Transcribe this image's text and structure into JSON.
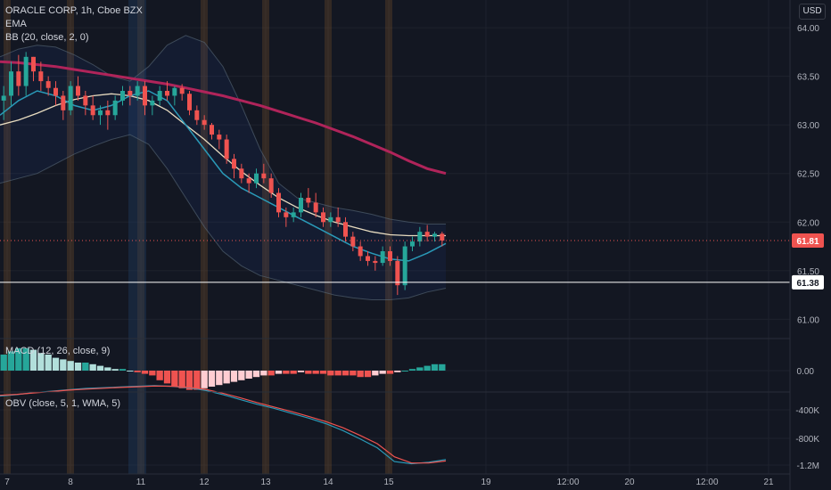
{
  "header": {
    "title": "ORACLE CORP, 1h, Cboe BZX",
    "ema_label": "EMA",
    "bb_label": "BB (20, close, 2, 0)",
    "macd_label": "MACD (12, 26, close, 9)",
    "obv_label": "OBV (close, 5, 1, WMA, 5)",
    "currency": "USD"
  },
  "colors": {
    "background": "#131722",
    "up": "#26a69a",
    "down": "#ef5350",
    "ema_slow": "#b0245a",
    "ma_basis": "#e8dcc0",
    "bb_band": "#2962ff",
    "ema_fast": "#2a9ab8",
    "session_highlight": "#8a5a2a",
    "grid": "#1e222d"
  },
  "chart_data": [
    {
      "type": "candlestick",
      "title": "ORACLE CORP, 1h, Cboe BZX",
      "y_ticks": [
        "64.00",
        "63.50",
        "63.00",
        "62.50",
        "62.00",
        "61.50",
        "61.00"
      ],
      "ylim": [
        60.82,
        64.12
      ],
      "x_ticks": [
        "7",
        "8",
        "11",
        "12",
        "13",
        "14",
        "15",
        "19",
        "12:00",
        "20",
        "12:00",
        "21"
      ],
      "last_price": "61.81",
      "horizontal_line": "61.38",
      "candles": [
        [
          63.25,
          63.4,
          63.05,
          63.3
        ],
        [
          63.3,
          63.65,
          63.2,
          63.55
        ],
        [
          63.55,
          63.72,
          63.3,
          63.4
        ],
        [
          63.4,
          63.75,
          63.3,
          63.7
        ],
        [
          63.7,
          63.7,
          63.45,
          63.55
        ],
        [
          63.55,
          63.65,
          63.35,
          63.45
        ],
        [
          63.45,
          63.5,
          63.3,
          63.38
        ],
        [
          63.38,
          63.45,
          63.2,
          63.3
        ],
        [
          63.3,
          63.35,
          63.05,
          63.15
        ],
        [
          63.15,
          63.45,
          63.1,
          63.4
        ],
        [
          63.4,
          63.5,
          63.25,
          63.3
        ],
        [
          63.3,
          63.35,
          63.1,
          63.2
        ],
        [
          63.2,
          63.3,
          63.05,
          63.1
        ],
        [
          63.1,
          63.2,
          63.0,
          63.15
        ],
        [
          63.15,
          63.25,
          62.95,
          63.1
        ],
        [
          63.1,
          63.3,
          63.05,
          63.25
        ],
        [
          63.25,
          63.4,
          63.2,
          63.35
        ],
        [
          63.35,
          63.4,
          63.2,
          63.3
        ],
        [
          63.3,
          63.45,
          63.25,
          63.4
        ],
        [
          63.4,
          63.45,
          63.1,
          63.2
        ],
        [
          63.2,
          63.3,
          63.1,
          63.25
        ],
        [
          63.25,
          63.4,
          63.2,
          63.35
        ],
        [
          63.35,
          63.45,
          63.25,
          63.3
        ],
        [
          63.3,
          63.4,
          63.2,
          63.38
        ],
        [
          63.38,
          63.42,
          63.25,
          63.32
        ],
        [
          63.32,
          63.35,
          63.1,
          63.15
        ],
        [
          63.15,
          63.2,
          63.0,
          63.05
        ],
        [
          63.05,
          63.1,
          62.95,
          63.0
        ],
        [
          63.0,
          63.02,
          62.85,
          62.9
        ],
        [
          62.9,
          62.95,
          62.75,
          62.85
        ],
        [
          62.85,
          62.9,
          62.6,
          62.65
        ],
        [
          62.65,
          62.7,
          62.45,
          62.55
        ],
        [
          62.55,
          62.6,
          62.4,
          62.45
        ],
        [
          62.45,
          62.5,
          62.3,
          62.4
        ],
        [
          62.4,
          62.55,
          62.35,
          62.5
        ],
        [
          62.5,
          62.6,
          62.4,
          62.45
        ],
        [
          62.45,
          62.5,
          62.25,
          62.3
        ],
        [
          62.3,
          62.35,
          62.05,
          62.1
        ],
        [
          62.1,
          62.15,
          61.95,
          62.05
        ],
        [
          62.05,
          62.15,
          62.0,
          62.1
        ],
        [
          62.1,
          62.3,
          62.05,
          62.25
        ],
        [
          62.25,
          62.35,
          62.15,
          62.2
        ],
        [
          62.2,
          62.3,
          62.05,
          62.1
        ],
        [
          62.1,
          62.15,
          61.95,
          62.0
        ],
        [
          62.0,
          62.1,
          61.95,
          62.05
        ],
        [
          62.05,
          62.15,
          61.95,
          62.0
        ],
        [
          62.0,
          62.05,
          61.8,
          61.85
        ],
        [
          61.85,
          61.9,
          61.7,
          61.75
        ],
        [
          61.75,
          61.8,
          61.6,
          61.65
        ],
        [
          61.65,
          61.7,
          61.55,
          61.6
        ],
        [
          61.6,
          61.65,
          61.5,
          61.58
        ],
        [
          61.58,
          61.75,
          61.55,
          61.7
        ],
        [
          61.7,
          61.75,
          61.55,
          61.6
        ],
        [
          61.6,
          61.65,
          61.25,
          61.35
        ],
        [
          61.35,
          61.8,
          61.3,
          61.75
        ],
        [
          61.75,
          61.85,
          61.7,
          61.8
        ],
        [
          61.8,
          61.95,
          61.75,
          61.9
        ],
        [
          61.9,
          61.97,
          61.8,
          61.85
        ],
        [
          61.85,
          61.9,
          61.8,
          61.88
        ],
        [
          61.88,
          61.9,
          61.75,
          61.81
        ]
      ],
      "ema_slow": [
        63.65,
        63.64,
        63.62,
        63.6,
        63.57,
        63.54,
        63.51,
        63.48,
        63.45,
        63.42,
        63.38,
        63.34,
        63.3,
        63.25,
        63.2,
        63.14,
        63.08,
        63.02,
        62.95,
        62.88,
        62.8,
        62.72,
        62.63,
        62.55,
        62.5
      ],
      "ma_basis": [
        63.0,
        63.05,
        63.12,
        63.2,
        63.26,
        63.3,
        63.32,
        63.3,
        63.25,
        63.15,
        63.0,
        62.85,
        62.68,
        62.52,
        62.38,
        62.25,
        62.15,
        62.07,
        62.0,
        61.95,
        61.9,
        61.87,
        61.86,
        61.86,
        61.86
      ],
      "ema_fast": [
        63.1,
        63.25,
        63.35,
        63.3,
        63.2,
        63.15,
        63.2,
        63.3,
        63.35,
        63.25,
        63.0,
        62.75,
        62.5,
        62.35,
        62.25,
        62.15,
        62.05,
        61.95,
        61.85,
        61.75,
        61.68,
        61.62,
        61.6,
        61.68,
        61.78
      ],
      "bb_upper": [
        63.7,
        63.78,
        63.82,
        63.8,
        63.72,
        63.62,
        63.5,
        63.45,
        63.6,
        63.82,
        63.92,
        63.85,
        63.6,
        63.2,
        62.75,
        62.4,
        62.25,
        62.2,
        62.15,
        62.12,
        62.08,
        62.03,
        62.0,
        61.98,
        61.98
      ],
      "bb_lower": [
        62.4,
        62.45,
        62.5,
        62.6,
        62.7,
        62.78,
        62.85,
        62.9,
        62.8,
        62.55,
        62.25,
        61.95,
        61.7,
        61.55,
        61.45,
        61.4,
        61.35,
        61.3,
        61.25,
        61.22,
        61.2,
        61.2,
        61.22,
        61.28,
        61.32
      ],
      "macd_hist": [
        0.1,
        0.12,
        0.14,
        0.14,
        0.13,
        0.11,
        0.1,
        0.08,
        0.07,
        0.06,
        0.05,
        0.05,
        0.04,
        0.03,
        0.02,
        0.01,
        0.01,
        0.0,
        -0.01,
        -0.02,
        -0.03,
        -0.06,
        -0.08,
        -0.1,
        -0.11,
        -0.12,
        -0.12,
        -0.11,
        -0.1,
        -0.09,
        -0.08,
        -0.07,
        -0.06,
        -0.05,
        -0.04,
        -0.03,
        -0.03,
        -0.02,
        -0.02,
        -0.02,
        -0.01,
        -0.02,
        -0.02,
        -0.02,
        -0.03,
        -0.03,
        -0.03,
        -0.03,
        -0.04,
        -0.04,
        -0.03,
        -0.02,
        -0.02,
        -0.01,
        0.0,
        0.01,
        0.02,
        0.03,
        0.04,
        0.04
      ],
      "macd_y_ticks": [
        "0.00"
      ],
      "obv_y_ticks": [
        "-400K",
        "-800K",
        "-1.2M"
      ],
      "obv": [
        -200,
        -180,
        -150,
        -130,
        -110,
        -90,
        -80,
        -70,
        -60,
        -50,
        -60,
        -80,
        -120,
        -180,
        -250,
        -320,
        -380,
        -450,
        -520,
        -600,
        -700,
        -820,
        -950,
        -1150,
        -1180,
        -1160,
        -1120
      ],
      "obv_wma": [
        -190,
        -175,
        -155,
        -135,
        -115,
        -100,
        -88,
        -76,
        -66,
        -56,
        -58,
        -72,
        -105,
        -160,
        -225,
        -295,
        -360,
        -425,
        -495,
        -570,
        -660,
        -770,
        -890,
        -1080,
        -1170,
        -1170,
        -1140
      ]
    }
  ]
}
